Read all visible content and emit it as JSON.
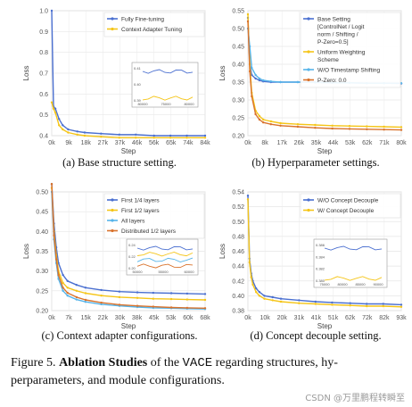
{
  "figure": {
    "caption_prefix": "Figure 5.",
    "caption_bold": "Ablation Studies",
    "caption_rest_1": " of the ",
    "caption_code": "VACE",
    "caption_rest_2": " regarding structures, hy-",
    "caption_line2": "perparameters, and module configurations.",
    "watermark": "CSDN @万里鹏程转瞬至"
  },
  "chart_data": [
    {
      "type": "line",
      "caption": "(a) Base structure setting.",
      "xlabel": "Step",
      "ylabel": "Loss",
      "xticks": [
        "0k",
        "9k",
        "18k",
        "27k",
        "37k",
        "46k",
        "56k",
        "65k",
        "74k",
        "84k"
      ],
      "xmax": 84,
      "ylim": [
        0.4,
        1.0
      ],
      "yticks": [
        "0.4",
        "0.5",
        "0.6",
        "0.7",
        "0.8",
        "0.9",
        "1.0"
      ],
      "grid": true,
      "legend_position": "top-right",
      "series": [
        {
          "name": "Fully Fine-tuning",
          "color": "#4a6fd0",
          "x": [
            0,
            1,
            2,
            4,
            6,
            9,
            14,
            18,
            27,
            37,
            46,
            56,
            65,
            74,
            84
          ],
          "values": [
            1.0,
            0.54,
            0.53,
            0.48,
            0.45,
            0.43,
            0.42,
            0.415,
            0.41,
            0.405,
            0.405,
            0.4,
            0.4,
            0.4,
            0.4
          ]
        },
        {
          "name": "Context Adapter Tuning",
          "color": "#f5c518",
          "x": [
            0,
            1,
            2,
            4,
            6,
            9,
            14,
            18,
            27,
            37,
            46,
            56,
            65,
            74,
            84
          ],
          "values": [
            0.56,
            0.53,
            0.51,
            0.45,
            0.43,
            0.415,
            0.405,
            0.4,
            0.395,
            0.39,
            0.39,
            0.39,
            0.39,
            0.39,
            0.39
          ]
        }
      ],
      "inset": {
        "yticks": [
          "0.41",
          "0.40",
          "0.39"
        ],
        "xticks": [
          "80000",
          "75000",
          "80000"
        ]
      }
    },
    {
      "type": "line",
      "caption": "(b) Hyperparameter settings.",
      "xlabel": "Step",
      "ylabel": "Loss",
      "xticks": [
        "0k",
        "8k",
        "17k",
        "26k",
        "35k",
        "44k",
        "53k",
        "62k",
        "71k",
        "80k"
      ],
      "xmax": 80,
      "ylim": [
        0.2,
        0.55
      ],
      "yticks": [
        "0.20",
        "0.25",
        "0.30",
        "0.35",
        "0.40",
        "0.45",
        "0.50",
        "0.55"
      ],
      "grid": true,
      "legend_position": "top-right",
      "series": [
        {
          "name": "Base Setting [ControlNet / Logit norm / Shifting / P-Zero=0.5]",
          "color": "#4a6fd0",
          "x": [
            0,
            1,
            2,
            4,
            6,
            8,
            12,
            17,
            26,
            35,
            44,
            53,
            62,
            71,
            80
          ],
          "values": [
            0.53,
            0.4,
            0.37,
            0.36,
            0.355,
            0.352,
            0.35,
            0.35,
            0.35,
            0.35,
            0.348,
            0.348,
            0.347,
            0.347,
            0.346
          ]
        },
        {
          "name": "Uniform Weighting Scheme",
          "color": "#f5c518",
          "x": [
            0,
            1,
            2,
            4,
            6,
            8,
            12,
            17,
            26,
            35,
            44,
            53,
            62,
            71,
            80
          ],
          "values": [
            0.54,
            0.4,
            0.32,
            0.27,
            0.255,
            0.245,
            0.24,
            0.235,
            0.232,
            0.23,
            0.228,
            0.227,
            0.226,
            0.225,
            0.224
          ]
        },
        {
          "name": "W/O Timestamp Shifting",
          "color": "#56b4e9",
          "x": [
            0,
            1,
            2,
            4,
            6,
            8,
            12,
            17,
            26,
            35,
            44,
            53,
            62,
            71,
            80
          ],
          "values": [
            0.5,
            0.45,
            0.39,
            0.37,
            0.36,
            0.355,
            0.352,
            0.35,
            0.35,
            0.349,
            0.348,
            0.348,
            0.347,
            0.347,
            0.347
          ]
        },
        {
          "name": "P-Zero: 0.0",
          "color": "#d9732d",
          "x": [
            0,
            1,
            2,
            4,
            6,
            8,
            12,
            17,
            26,
            35,
            44,
            53,
            62,
            71,
            80
          ],
          "values": [
            0.52,
            0.38,
            0.31,
            0.26,
            0.245,
            0.237,
            0.232,
            0.228,
            0.225,
            0.222,
            0.22,
            0.219,
            0.218,
            0.217,
            0.216
          ]
        }
      ]
    },
    {
      "type": "line",
      "caption": "(c) Context adapter configurations.",
      "xlabel": "Step",
      "ylabel": "Loss",
      "xticks": [
        "0k",
        "7k",
        "15k",
        "22k",
        "30k",
        "38k",
        "45k",
        "53k",
        "60k",
        "68k"
      ],
      "xmax": 68,
      "ylim": [
        0.2,
        0.5
      ],
      "yticks": [
        "0.20",
        "0.25",
        "0.30",
        "0.35",
        "0.40",
        "0.45",
        "0.50"
      ],
      "grid": true,
      "legend_position": "top-right",
      "series": [
        {
          "name": "First 1/4 layers",
          "color": "#4a6fd0",
          "x": [
            0,
            1,
            2,
            3,
            5,
            7,
            11,
            15,
            22,
            30,
            38,
            45,
            53,
            60,
            68
          ],
          "values": [
            0.52,
            0.42,
            0.36,
            0.32,
            0.29,
            0.275,
            0.265,
            0.258,
            0.252,
            0.248,
            0.246,
            0.245,
            0.244,
            0.243,
            0.242
          ]
        },
        {
          "name": "First 1/2 layers",
          "color": "#f5c518",
          "x": [
            0,
            1,
            2,
            3,
            5,
            7,
            11,
            15,
            22,
            30,
            38,
            45,
            53,
            60,
            68
          ],
          "values": [
            0.51,
            0.4,
            0.34,
            0.3,
            0.27,
            0.258,
            0.25,
            0.244,
            0.238,
            0.234,
            0.232,
            0.23,
            0.229,
            0.228,
            0.227
          ]
        },
        {
          "name": "All layers",
          "color": "#56b4e9",
          "x": [
            0,
            1,
            2,
            3,
            5,
            7,
            11,
            15,
            22,
            30,
            38,
            45,
            53,
            60,
            68
          ],
          "values": [
            0.5,
            0.38,
            0.32,
            0.28,
            0.25,
            0.238,
            0.228,
            0.222,
            0.216,
            0.212,
            0.209,
            0.207,
            0.206,
            0.205,
            0.204
          ]
        },
        {
          "name": "Distributed 1/2 layers",
          "color": "#d9732d",
          "x": [
            0,
            1,
            2,
            3,
            5,
            7,
            11,
            15,
            22,
            30,
            38,
            45,
            53,
            60,
            68
          ],
          "values": [
            0.52,
            0.39,
            0.33,
            0.29,
            0.258,
            0.245,
            0.234,
            0.227,
            0.22,
            0.215,
            0.212,
            0.21,
            0.208,
            0.207,
            0.206
          ]
        }
      ],
      "inset": {
        "yticks": [
          "0.24",
          "0.22",
          "0.20"
        ],
        "xticks": [
          "50000",
          "55000",
          "60000"
        ]
      }
    },
    {
      "type": "line",
      "caption": "(d) Concept decouple setting.",
      "xlabel": "Step",
      "ylabel": "Loss",
      "xticks": [
        "0k",
        "10k",
        "20k",
        "31k",
        "41k",
        "51k",
        "62k",
        "72k",
        "82k",
        "93k"
      ],
      "xmax": 93,
      "ylim": [
        0.38,
        0.54
      ],
      "yticks": [
        "0.38",
        "0.40",
        "0.42",
        "0.44",
        "0.46",
        "0.48",
        "0.50",
        "0.52",
        "0.54"
      ],
      "grid": true,
      "legend_position": "top-right",
      "series": [
        {
          "name": "W/O Concept Decouple",
          "color": "#4a6fd0",
          "x": [
            0,
            1,
            2,
            3,
            5,
            7,
            10,
            15,
            20,
            31,
            41,
            51,
            62,
            72,
            82,
            93
          ],
          "values": [
            0.535,
            0.45,
            0.43,
            0.42,
            0.41,
            0.405,
            0.4,
            0.398,
            0.396,
            0.394,
            0.392,
            0.391,
            0.39,
            0.389,
            0.389,
            0.388
          ]
        },
        {
          "name": "W/ Concept Decouple",
          "color": "#f5c518",
          "x": [
            0,
            1,
            2,
            3,
            5,
            7,
            10,
            15,
            20,
            31,
            41,
            51,
            62,
            72,
            82,
            93
          ],
          "values": [
            0.53,
            0.445,
            0.425,
            0.415,
            0.405,
            0.4,
            0.396,
            0.394,
            0.392,
            0.39,
            0.389,
            0.388,
            0.387,
            0.386,
            0.386,
            0.385
          ]
        }
      ],
      "inset": {
        "yticks": [
          "0.386",
          "0.384",
          "0.382",
          "0.380"
        ],
        "xticks": [
          "75000",
          "80000",
          "85000",
          "90000"
        ]
      }
    }
  ]
}
